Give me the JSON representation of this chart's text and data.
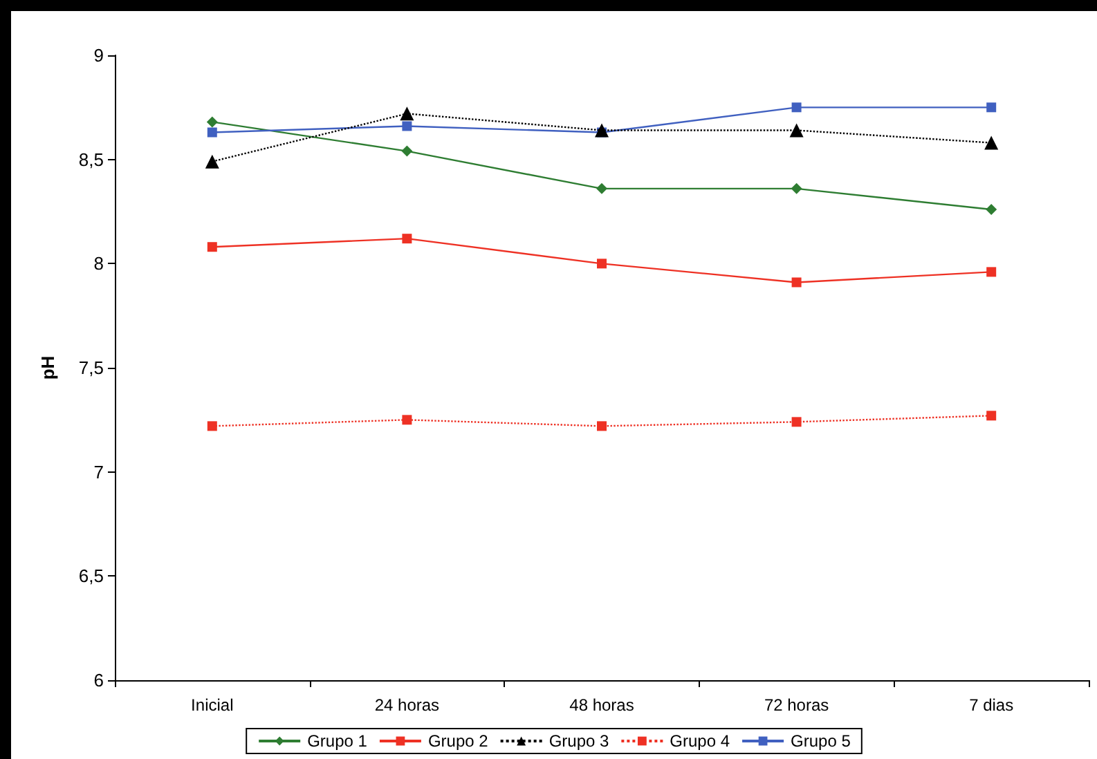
{
  "chart_data": {
    "type": "line",
    "ylabel": "pH",
    "categories": [
      "Inicial",
      "24 horas",
      "48 horas",
      "72 horas",
      "7 dias"
    ],
    "ylim": [
      6,
      9
    ],
    "yticks": [
      {
        "value": 6,
        "label": "6"
      },
      {
        "value": 6.5,
        "label": "6,5"
      },
      {
        "value": 7,
        "label": "7"
      },
      {
        "value": 7.5,
        "label": "7,5"
      },
      {
        "value": 8,
        "label": "8"
      },
      {
        "value": 8.5,
        "label": "8,5"
      },
      {
        "value": 9,
        "label": "9"
      }
    ],
    "grid": false,
    "legend": "bottom",
    "series": [
      {
        "name": "Grupo 1",
        "color": "#2e7d32",
        "marker": "diamond",
        "line_style": "solid",
        "values": [
          8.68,
          8.54,
          8.36,
          8.36,
          8.26
        ]
      },
      {
        "name": "Grupo 2",
        "color": "#ee3124",
        "marker": "square",
        "line_style": "solid",
        "values": [
          8.08,
          8.12,
          8.0,
          7.91,
          7.96
        ]
      },
      {
        "name": "Grupo 3",
        "color": "#000000",
        "marker": "triangle",
        "line_style": "dotted",
        "values": [
          8.49,
          8.72,
          8.64,
          8.64,
          8.58
        ]
      },
      {
        "name": "Grupo 4",
        "color": "#ee3124",
        "marker": "square",
        "line_style": "dotted",
        "values": [
          7.22,
          7.25,
          7.22,
          7.24,
          7.27
        ]
      },
      {
        "name": "Grupo 5",
        "color": "#4060c0",
        "marker": "square",
        "line_style": "solid",
        "values": [
          8.63,
          8.66,
          8.63,
          8.75,
          8.75
        ]
      }
    ]
  }
}
